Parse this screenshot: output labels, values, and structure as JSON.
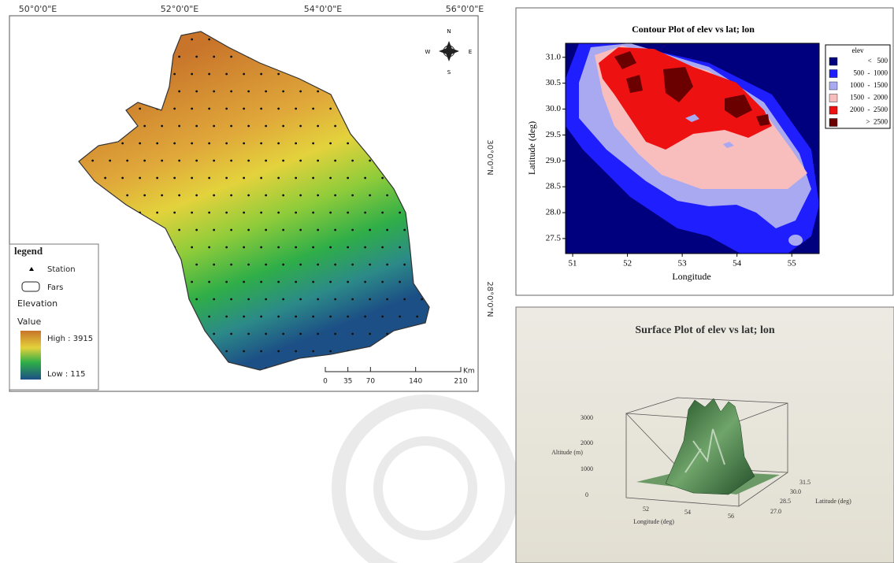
{
  "map": {
    "lon_labels": [
      "50°0'0\"E",
      "52°0'0\"E",
      "54°0'0\"E",
      "56°0'0\"E"
    ],
    "lat_labels": [
      "30°0'0\"N",
      "28°0'0\"N"
    ],
    "compass": {
      "n": "N",
      "e": "E",
      "s": "S",
      "w": "W"
    },
    "legend": {
      "title": "legend",
      "station": "Station",
      "boundary": "Fars",
      "layer": "Elevation",
      "field": "Value",
      "high": "High : 3915",
      "low": "Low : 115"
    },
    "scale_bar": {
      "unit": "Km",
      "ticks": [
        0,
        35,
        70,
        140,
        210
      ]
    }
  },
  "contour": {
    "title": "Contour Plot of elev vs lat; lon",
    "x_label": "Longitude",
    "y_label": "Latitude (deg)",
    "xlim": [
      50.87,
      55.5
    ],
    "ylim": [
      27.21,
      31.27
    ],
    "xticks": [
      51,
      52,
      53,
      54,
      55
    ],
    "yticks": [
      27.5,
      {
        "value": 28,
        "label": "28.0"
      },
      28.5,
      {
        "value": 29,
        "label": "29.0"
      },
      29.5,
      {
        "value": 30,
        "label": "30.0"
      },
      30.5,
      {
        "value": 31,
        "label": "31.0"
      }
    ],
    "legend": {
      "title": "elev",
      "entries": [
        {
          "label": "<   500",
          "color": "#00007f"
        },
        {
          "label": "500  -  1000",
          "color": "#1e1eff"
        },
        {
          "label": "1000  -  1500",
          "color": "#a9a9f2"
        },
        {
          "label": "1500  -  2000",
          "color": "#f8bdbd"
        },
        {
          "label": "2000  -  2500",
          "color": "#ee1111"
        },
        {
          "label": ">  2500",
          "color": "#6a0000"
        }
      ]
    }
  },
  "surface": {
    "title": "Surface Plot of elev vs lat; lon",
    "z_label": "Altitude (m)",
    "z_ticks": [
      "0",
      "1000",
      "2000",
      "3000"
    ],
    "x_label": "Longitude (deg)",
    "x_ticks": [
      "52",
      "54",
      "56"
    ],
    "y_label": "Latitude (deg)",
    "y_ticks": [
      "27.0",
      "28.5",
      "30.0",
      "31.5"
    ]
  }
}
